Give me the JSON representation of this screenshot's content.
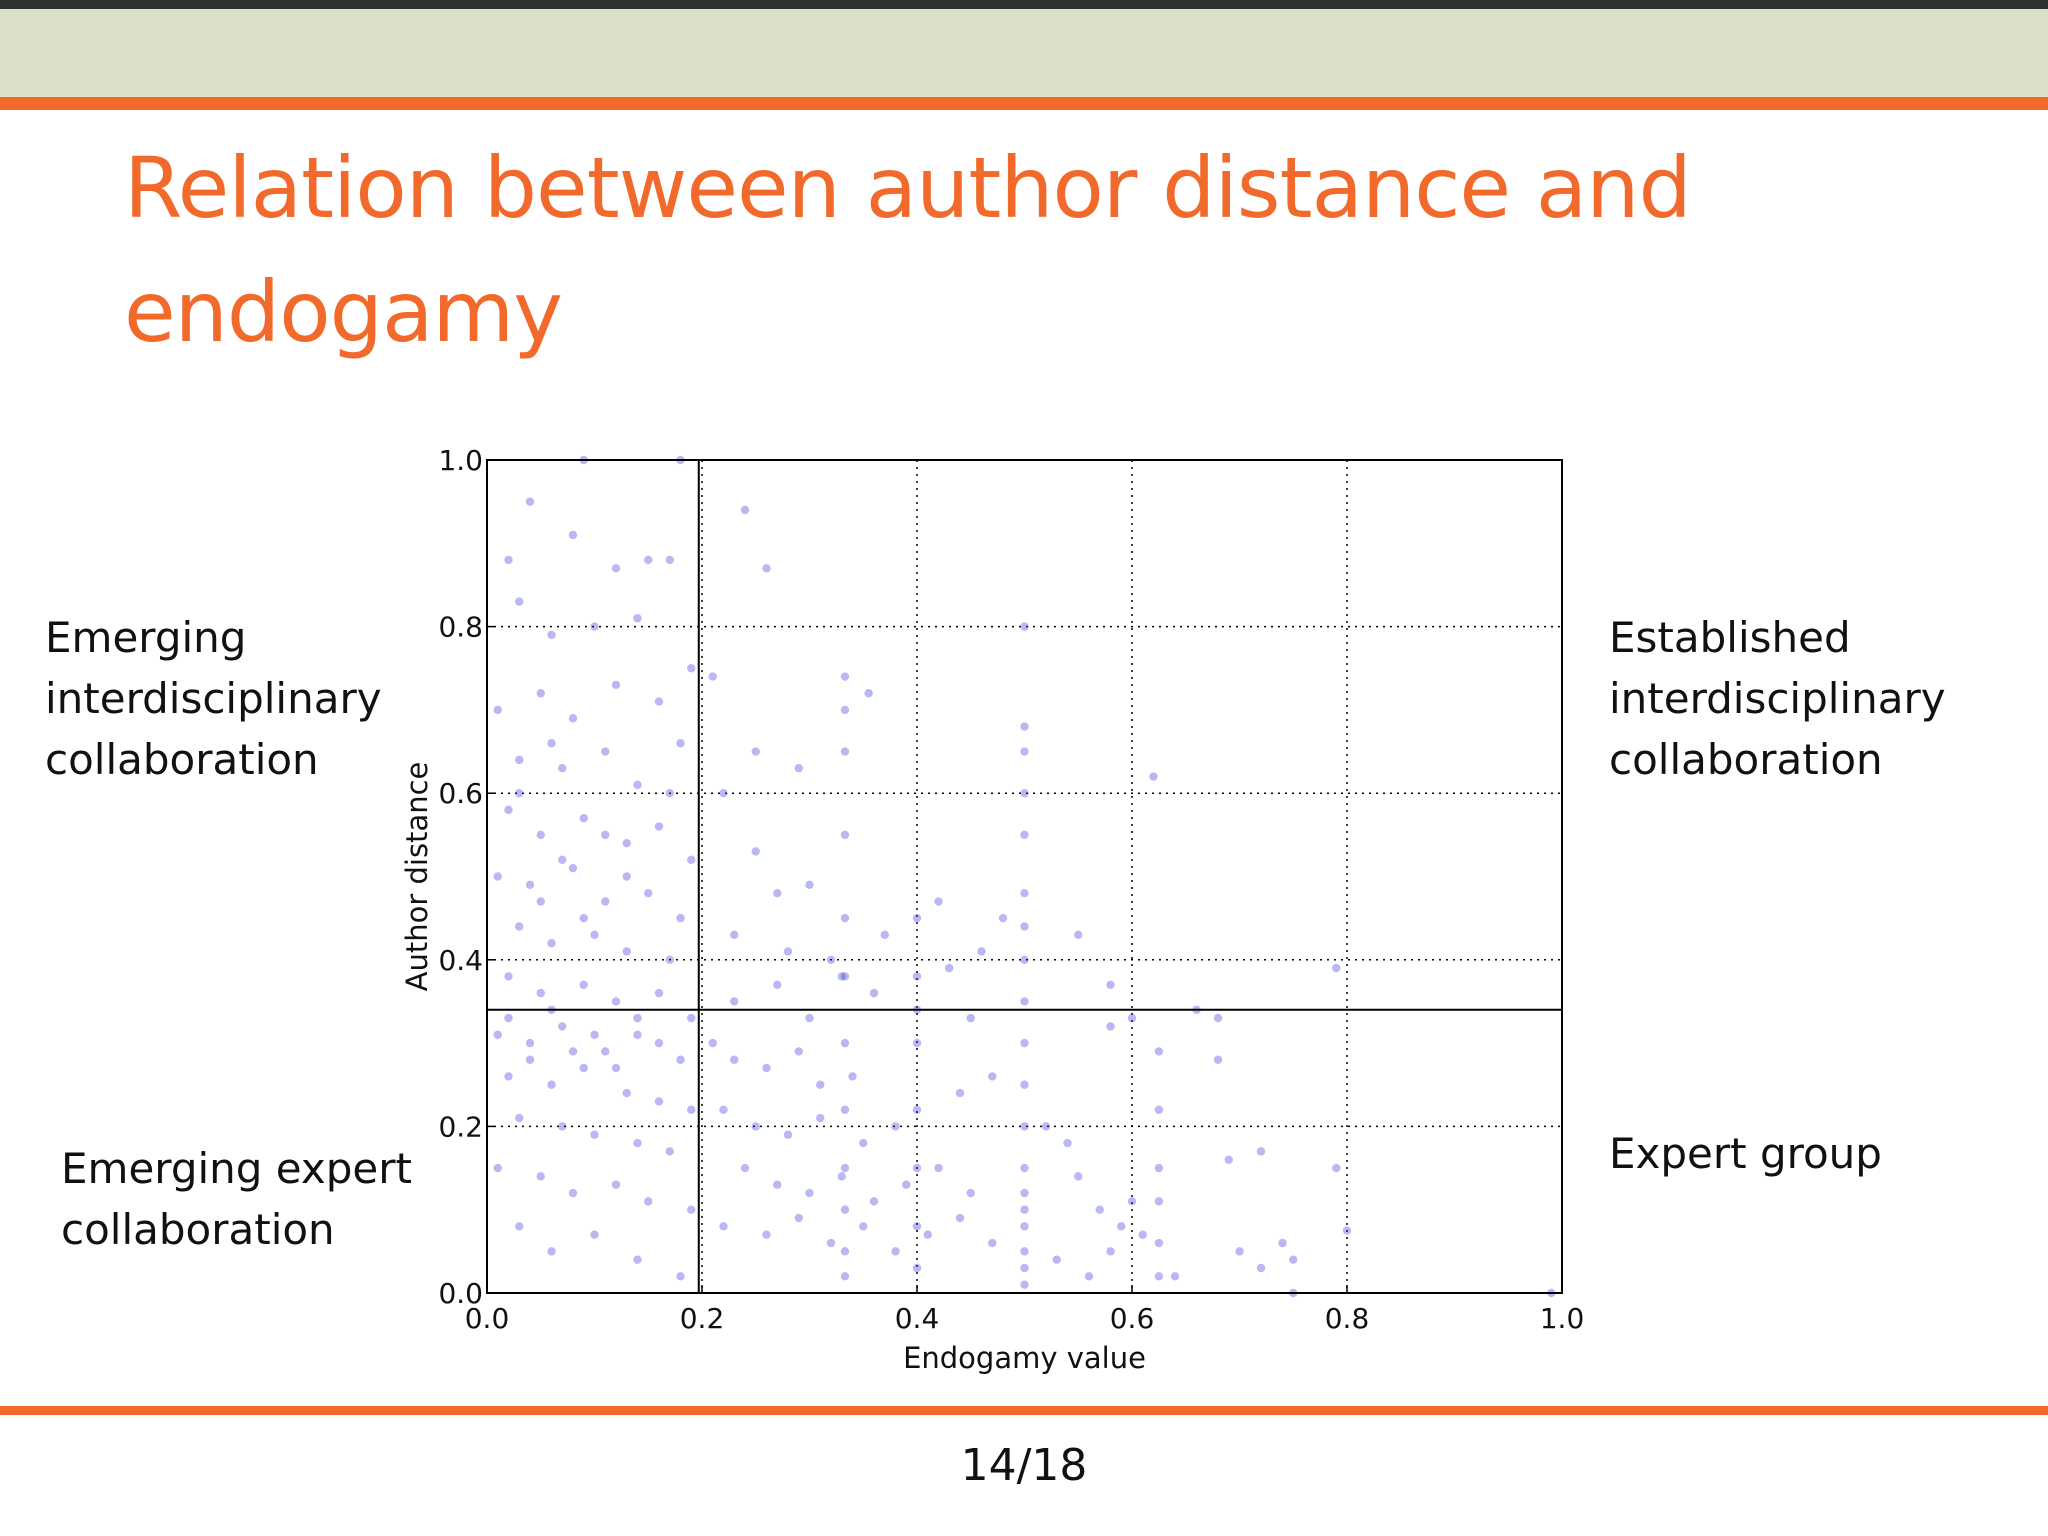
{
  "slide": {
    "title": "Relation between author distance and endogamy",
    "page_number": "14/18"
  },
  "quadrant_labels": {
    "top_left": "Emerging\ninterdisciplinary\ncollaboration",
    "top_right": "Established\ninterdisciplinary\ncollaboration",
    "bottom_left": "Emerging expert\ncollaboration",
    "bottom_right": "Expert group"
  },
  "colors": {
    "accent": "#f26a2b",
    "header_band": "#dbe0c8",
    "points": "#3333dd"
  },
  "chart_data": {
    "type": "scatter",
    "title": "",
    "xlabel": "Endogamy value",
    "ylabel": "Author distance",
    "xlim": [
      0.0,
      1.0
    ],
    "ylim": [
      0.0,
      1.0
    ],
    "x_ticks": [
      "0.0",
      "0.2",
      "0.4",
      "0.6",
      "0.8",
      "1.0"
    ],
    "y_ticks": [
      "0.0",
      "0.2",
      "0.4",
      "0.6",
      "0.8",
      "1.0"
    ],
    "grid": true,
    "grid_style": "dotted",
    "threshold_lines": {
      "x": 0.197,
      "y": 0.34
    },
    "series": [
      {
        "points": [
          [
            0.02,
            0.88
          ],
          [
            0.04,
            0.95
          ],
          [
            0.09,
            1.0
          ],
          [
            0.18,
            1.0
          ],
          [
            0.03,
            0.83
          ],
          [
            0.08,
            0.91
          ],
          [
            0.12,
            0.87
          ],
          [
            0.15,
            0.88
          ],
          [
            0.17,
            0.88
          ],
          [
            0.06,
            0.79
          ],
          [
            0.1,
            0.8
          ],
          [
            0.14,
            0.81
          ],
          [
            0.19,
            0.75
          ],
          [
            0.01,
            0.7
          ],
          [
            0.05,
            0.72
          ],
          [
            0.08,
            0.69
          ],
          [
            0.12,
            0.73
          ],
          [
            0.16,
            0.71
          ],
          [
            0.18,
            0.66
          ],
          [
            0.03,
            0.64
          ],
          [
            0.07,
            0.63
          ],
          [
            0.11,
            0.65
          ],
          [
            0.14,
            0.61
          ],
          [
            0.17,
            0.6
          ],
          [
            0.02,
            0.58
          ],
          [
            0.05,
            0.55
          ],
          [
            0.09,
            0.57
          ],
          [
            0.13,
            0.54
          ],
          [
            0.16,
            0.56
          ],
          [
            0.19,
            0.52
          ],
          [
            0.01,
            0.5
          ],
          [
            0.04,
            0.49
          ],
          [
            0.08,
            0.51
          ],
          [
            0.11,
            0.47
          ],
          [
            0.15,
            0.48
          ],
          [
            0.18,
            0.45
          ],
          [
            0.03,
            0.44
          ],
          [
            0.06,
            0.42
          ],
          [
            0.1,
            0.43
          ],
          [
            0.13,
            0.41
          ],
          [
            0.17,
            0.4
          ],
          [
            0.02,
            0.38
          ],
          [
            0.05,
            0.36
          ],
          [
            0.09,
            0.37
          ],
          [
            0.12,
            0.35
          ],
          [
            0.16,
            0.36
          ],
          [
            0.19,
            0.33
          ],
          [
            0.01,
            0.31
          ],
          [
            0.04,
            0.3
          ],
          [
            0.07,
            0.32
          ],
          [
            0.11,
            0.29
          ],
          [
            0.14,
            0.31
          ],
          [
            0.18,
            0.28
          ],
          [
            0.02,
            0.26
          ],
          [
            0.06,
            0.25
          ],
          [
            0.09,
            0.27
          ],
          [
            0.13,
            0.24
          ],
          [
            0.16,
            0.23
          ],
          [
            0.19,
            0.22
          ],
          [
            0.03,
            0.21
          ],
          [
            0.07,
            0.2
          ],
          [
            0.1,
            0.19
          ],
          [
            0.14,
            0.18
          ],
          [
            0.17,
            0.17
          ],
          [
            0.01,
            0.15
          ],
          [
            0.05,
            0.14
          ],
          [
            0.08,
            0.12
          ],
          [
            0.12,
            0.13
          ],
          [
            0.15,
            0.11
          ],
          [
            0.19,
            0.1
          ],
          [
            0.03,
            0.08
          ],
          [
            0.06,
            0.05
          ],
          [
            0.1,
            0.07
          ],
          [
            0.14,
            0.04
          ],
          [
            0.18,
            0.02
          ],
          [
            0.02,
            0.33
          ],
          [
            0.04,
            0.28
          ],
          [
            0.06,
            0.34
          ],
          [
            0.08,
            0.29
          ],
          [
            0.1,
            0.31
          ],
          [
            0.12,
            0.27
          ],
          [
            0.14,
            0.33
          ],
          [
            0.16,
            0.3
          ],
          [
            0.05,
            0.47
          ],
          [
            0.07,
            0.52
          ],
          [
            0.09,
            0.45
          ],
          [
            0.11,
            0.55
          ],
          [
            0.13,
            0.5
          ],
          [
            0.03,
            0.6
          ],
          [
            0.06,
            0.66
          ],
          [
            0.21,
            0.74
          ],
          [
            0.24,
            0.94
          ],
          [
            0.26,
            0.87
          ],
          [
            0.22,
            0.6
          ],
          [
            0.25,
            0.53
          ],
          [
            0.27,
            0.48
          ],
          [
            0.3,
            0.49
          ],
          [
            0.23,
            0.43
          ],
          [
            0.28,
            0.41
          ],
          [
            0.32,
            0.4
          ],
          [
            0.21,
            0.3
          ],
          [
            0.23,
            0.28
          ],
          [
            0.26,
            0.27
          ],
          [
            0.29,
            0.29
          ],
          [
            0.31,
            0.25
          ],
          [
            0.34,
            0.26
          ],
          [
            0.22,
            0.22
          ],
          [
            0.25,
            0.2
          ],
          [
            0.28,
            0.19
          ],
          [
            0.31,
            0.21
          ],
          [
            0.35,
            0.18
          ],
          [
            0.38,
            0.2
          ],
          [
            0.24,
            0.15
          ],
          [
            0.27,
            0.13
          ],
          [
            0.3,
            0.12
          ],
          [
            0.33,
            0.14
          ],
          [
            0.36,
            0.11
          ],
          [
            0.39,
            0.13
          ],
          [
            0.42,
            0.15
          ],
          [
            0.45,
            0.12
          ],
          [
            0.22,
            0.08
          ],
          [
            0.26,
            0.07
          ],
          [
            0.29,
            0.09
          ],
          [
            0.32,
            0.06
          ],
          [
            0.35,
            0.08
          ],
          [
            0.38,
            0.05
          ],
          [
            0.41,
            0.07
          ],
          [
            0.44,
            0.09
          ],
          [
            0.47,
            0.06
          ],
          [
            0.23,
            0.35
          ],
          [
            0.27,
            0.37
          ],
          [
            0.3,
            0.33
          ],
          [
            0.33,
            0.38
          ],
          [
            0.36,
            0.36
          ],
          [
            0.4,
            0.34
          ],
          [
            0.43,
            0.39
          ],
          [
            0.46,
            0.41
          ],
          [
            0.48,
            0.45
          ],
          [
            0.42,
            0.47
          ],
          [
            0.37,
            0.43
          ],
          [
            0.333,
            0.74
          ],
          [
            0.333,
            0.7
          ],
          [
            0.333,
            0.65
          ],
          [
            0.333,
            0.55
          ],
          [
            0.333,
            0.45
          ],
          [
            0.333,
            0.38
          ],
          [
            0.333,
            0.3
          ],
          [
            0.333,
            0.22
          ],
          [
            0.333,
            0.15
          ],
          [
            0.333,
            0.1
          ],
          [
            0.333,
            0.05
          ],
          [
            0.333,
            0.02
          ],
          [
            0.355,
            0.72
          ],
          [
            0.25,
            0.65
          ],
          [
            0.29,
            0.63
          ],
          [
            0.4,
            0.45
          ],
          [
            0.4,
            0.38
          ],
          [
            0.4,
            0.3
          ],
          [
            0.4,
            0.22
          ],
          [
            0.4,
            0.15
          ],
          [
            0.4,
            0.08
          ],
          [
            0.4,
            0.03
          ],
          [
            0.5,
            0.8
          ],
          [
            0.5,
            0.68
          ],
          [
            0.5,
            0.65
          ],
          [
            0.5,
            0.6
          ],
          [
            0.5,
            0.55
          ],
          [
            0.5,
            0.48
          ],
          [
            0.5,
            0.44
          ],
          [
            0.5,
            0.4
          ],
          [
            0.5,
            0.35
          ],
          [
            0.5,
            0.3
          ],
          [
            0.5,
            0.25
          ],
          [
            0.5,
            0.2
          ],
          [
            0.5,
            0.15
          ],
          [
            0.5,
            0.12
          ],
          [
            0.5,
            0.1
          ],
          [
            0.5,
            0.08
          ],
          [
            0.5,
            0.05
          ],
          [
            0.5,
            0.03
          ],
          [
            0.5,
            0.01
          ],
          [
            0.52,
            0.2
          ],
          [
            0.54,
            0.18
          ],
          [
            0.55,
            0.14
          ],
          [
            0.57,
            0.1
          ],
          [
            0.59,
            0.08
          ],
          [
            0.53,
            0.04
          ],
          [
            0.56,
            0.02
          ],
          [
            0.58,
            0.05
          ],
          [
            0.6,
            0.11
          ],
          [
            0.61,
            0.07
          ],
          [
            0.62,
            0.62
          ],
          [
            0.625,
            0.29
          ],
          [
            0.625,
            0.22
          ],
          [
            0.625,
            0.15
          ],
          [
            0.625,
            0.11
          ],
          [
            0.625,
            0.06
          ],
          [
            0.625,
            0.02
          ],
          [
            0.6,
            0.33
          ],
          [
            0.58,
            0.37
          ],
          [
            0.64,
            0.02
          ],
          [
            0.66,
            0.34
          ],
          [
            0.68,
            0.33
          ],
          [
            0.68,
            0.28
          ],
          [
            0.69,
            0.16
          ],
          [
            0.7,
            0.05
          ],
          [
            0.72,
            0.17
          ],
          [
            0.72,
            0.03
          ],
          [
            0.74,
            0.06
          ],
          [
            0.75,
            0.04
          ],
          [
            0.75,
            0.0
          ],
          [
            0.79,
            0.15
          ],
          [
            0.8,
            0.075
          ],
          [
            0.79,
            0.39
          ],
          [
            0.99,
            0.0
          ],
          [
            0.55,
            0.43
          ],
          [
            0.58,
            0.32
          ],
          [
            0.45,
            0.33
          ],
          [
            0.44,
            0.24
          ],
          [
            0.47,
            0.26
          ]
        ]
      }
    ]
  }
}
